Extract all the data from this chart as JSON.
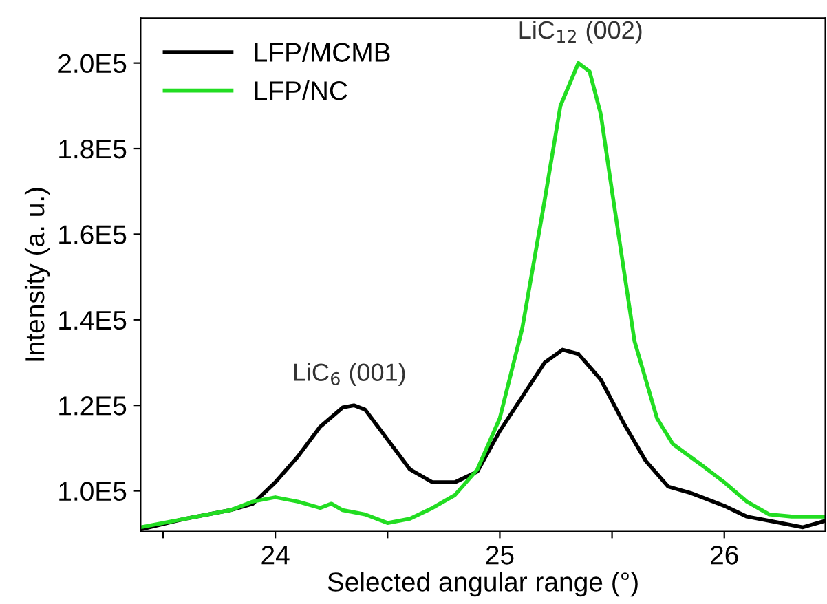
{
  "chart_data": {
    "type": "line",
    "xlabel": "Selected angular range (°)",
    "ylabel": "Intensity (a. u.)",
    "xlim": [
      23.4,
      26.45
    ],
    "xticks": [
      {
        "value": 23.5,
        "label": null
      },
      24,
      {
        "value": 24.5,
        "label": null
      },
      25,
      {
        "value": 25.5,
        "label": null
      },
      26
    ],
    "ylim": [
      90500,
      210500
    ],
    "yticks": [
      {
        "value": 100000,
        "label": "1.0E5"
      },
      {
        "value": 120000,
        "label": "1.2E5"
      },
      {
        "value": 140000,
        "label": "1.4E5"
      },
      {
        "value": 160000,
        "label": "1.6E5"
      },
      {
        "value": 180000,
        "label": "1.8E5"
      },
      {
        "value": 200000,
        "label": "2.0E5"
      }
    ],
    "grid": false,
    "legend": "top left",
    "marker": "none",
    "line_style": "solid",
    "annotations": [
      {
        "text": "LiC$_{6}$ (001)",
        "x": 24.33,
        "y": 120000
      },
      {
        "text": "LiC$_{12}$ (002)",
        "x": 25.36,
        "y": 200000
      }
    ],
    "series": [
      {
        "name": "LFP/MCMB",
        "color": "#000000",
        "x": [
          23.4,
          23.6,
          23.8,
          23.9,
          24.0,
          24.1,
          24.2,
          24.3,
          24.35,
          24.4,
          24.5,
          24.6,
          24.7,
          24.8,
          24.9,
          25.0,
          25.1,
          25.2,
          25.28,
          25.35,
          25.45,
          25.55,
          25.65,
          25.75,
          25.85,
          26.0,
          26.1,
          26.2,
          26.35,
          26.45
        ],
        "values": [
          91000,
          93500,
          95500,
          97000,
          102000,
          108000,
          115000,
          119500,
          120000,
          119000,
          112000,
          105000,
          102000,
          102000,
          104500,
          114000,
          122000,
          130000,
          133000,
          132000,
          126000,
          116000,
          107000,
          101000,
          99500,
          96500,
          94000,
          93000,
          91500,
          93000
        ]
      },
      {
        "name": "LFP/NC",
        "color": "#22dd22",
        "x": [
          23.4,
          23.6,
          23.8,
          23.9,
          24.0,
          24.1,
          24.2,
          24.25,
          24.3,
          24.4,
          24.5,
          24.6,
          24.7,
          24.8,
          24.9,
          25.0,
          25.1,
          25.2,
          25.27,
          25.35,
          25.4,
          25.45,
          25.5,
          25.6,
          25.7,
          25.77,
          25.9,
          26.0,
          26.1,
          26.2,
          26.3,
          26.45
        ],
        "values": [
          91500,
          93500,
          95500,
          97500,
          98500,
          97500,
          96000,
          97000,
          95500,
          94500,
          92500,
          93500,
          96000,
          99000,
          105000,
          117000,
          138000,
          168000,
          190000,
          200000,
          198000,
          188000,
          170000,
          135000,
          117000,
          111000,
          106000,
          102000,
          97500,
          94500,
          94000,
          94000
        ]
      }
    ]
  }
}
